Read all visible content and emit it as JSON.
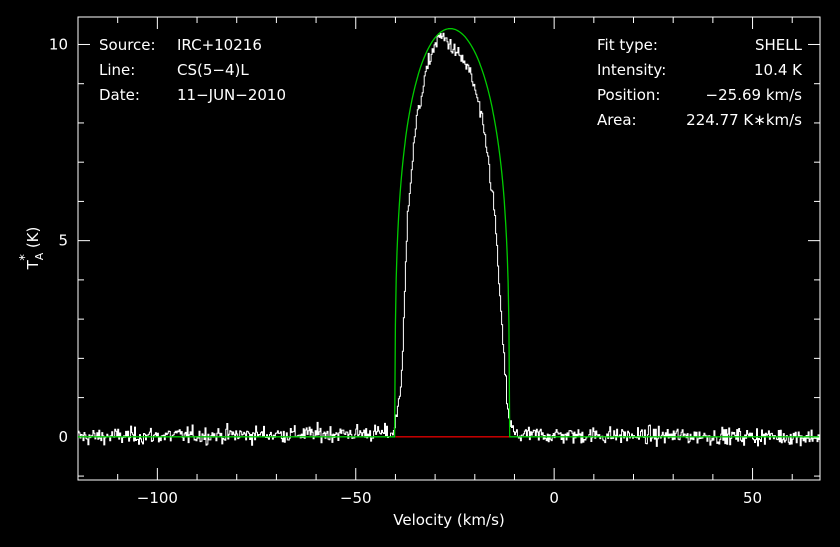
{
  "chart_data": {
    "type": "line",
    "xlabel": "Velocity (km/s)",
    "ylabel": "T",
    "ylabel_sub": "A",
    "ylabel_sup": "*",
    "ylabel_unit": "(K)",
    "xlim": [
      -120,
      67
    ],
    "ylim": [
      -1.1,
      10.7
    ],
    "x_ticks": [
      -100,
      -50,
      0,
      50
    ],
    "x_tick_labels": [
      "−100",
      "−50",
      "0",
      "50"
    ],
    "y_ticks": [
      0,
      5,
      10
    ],
    "y_tick_labels": [
      "0",
      "5",
      "10"
    ],
    "grid": false,
    "colors": {
      "background": "#000000",
      "axes": "#ffffff",
      "spectrum": "#ffffff",
      "fit": "#00cc00",
      "baseline": "#dd0000"
    },
    "annotations_left": [
      {
        "label": "Source:",
        "value": "IRC+10216"
      },
      {
        "label": "Line:",
        "value": "CS(5−4)L"
      },
      {
        "label": "Date:",
        "value": "11−JUN−2010"
      }
    ],
    "annotations_right": [
      {
        "label": "Fit type:",
        "value": "SHELL"
      },
      {
        "label": "Intensity:",
        "value": "10.4 K"
      },
      {
        "label": "Position:",
        "value": "−25.69 km/s"
      },
      {
        "label": "Area:",
        "value": "224.77 K∗km/s"
      }
    ],
    "series": [
      {
        "type": "shell-fit",
        "center": -25.69,
        "peak": 10.4,
        "half_width": 14.4,
        "horn": 0.25
      },
      {
        "type": "spectrum",
        "x": [
          -120,
          -40.5,
          -38.5,
          -37,
          -35,
          -33,
          -31,
          -29,
          -27,
          -25,
          -23,
          -21,
          -19,
          -17,
          -15,
          -13,
          -11.5,
          -10,
          67
        ],
        "y": [
          0,
          0.1,
          1.5,
          5.8,
          7.9,
          9.0,
          9.8,
          10.2,
          10.1,
          9.8,
          9.6,
          9.2,
          8.4,
          7.3,
          5.6,
          2.3,
          0.4,
          0.05,
          0
        ],
        "noise_rms": 0.15
      },
      {
        "type": "baseline",
        "x": [
          -40,
          -11
        ],
        "y": [
          0,
          0
        ]
      }
    ]
  }
}
